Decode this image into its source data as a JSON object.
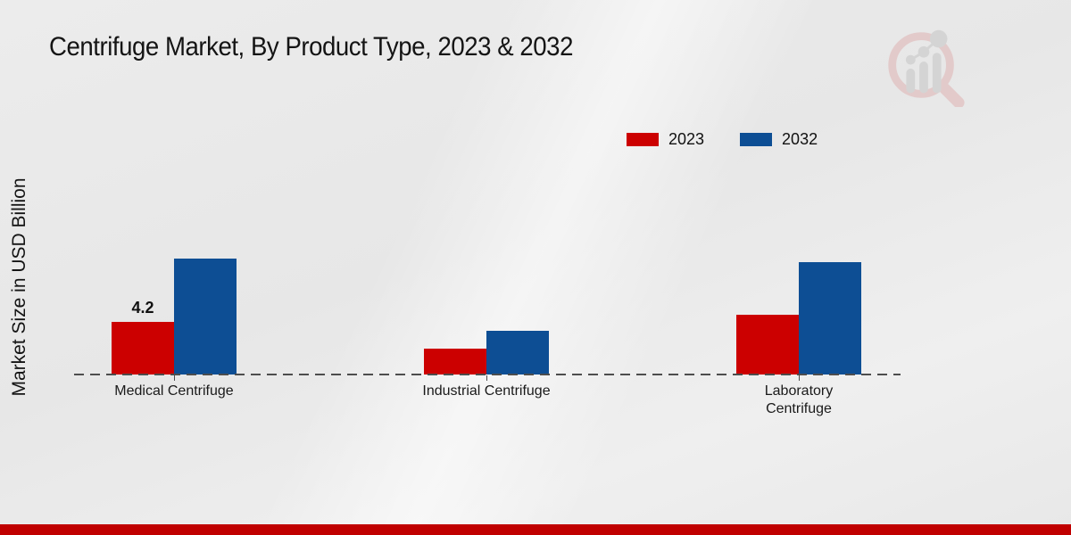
{
  "page": {
    "footer_strip_color": "#c00000",
    "background_color": "#e9e9e9"
  },
  "logo": {
    "description": "magnifying-glass-with-bar-chart watermark",
    "ring_color": "#dfb3b3",
    "bars_color": "#c6c6c6"
  },
  "chart_data": {
    "type": "bar",
    "title": "Centrifuge Market, By Product Type, 2023 & 2032",
    "ylabel": "Market Size in USD Billion",
    "xlabel": "",
    "categories": [
      "Medical Centrifuge",
      "Industrial Centrifuge",
      "Laboratory Centrifuge"
    ],
    "series": [
      {
        "name": "2023",
        "color": "#cc0000",
        "values": [
          4.2,
          2.1,
          4.8
        ],
        "value_labels": [
          "4.2",
          "",
          ""
        ]
      },
      {
        "name": "2032",
        "color": "#0d4e94",
        "values": [
          9.3,
          3.5,
          9.0
        ],
        "value_labels": [
          "",
          "",
          ""
        ]
      }
    ],
    "ylim": [
      0,
      10
    ],
    "grid": false,
    "legend_position": "top-right",
    "baseline_style": "dashed"
  }
}
